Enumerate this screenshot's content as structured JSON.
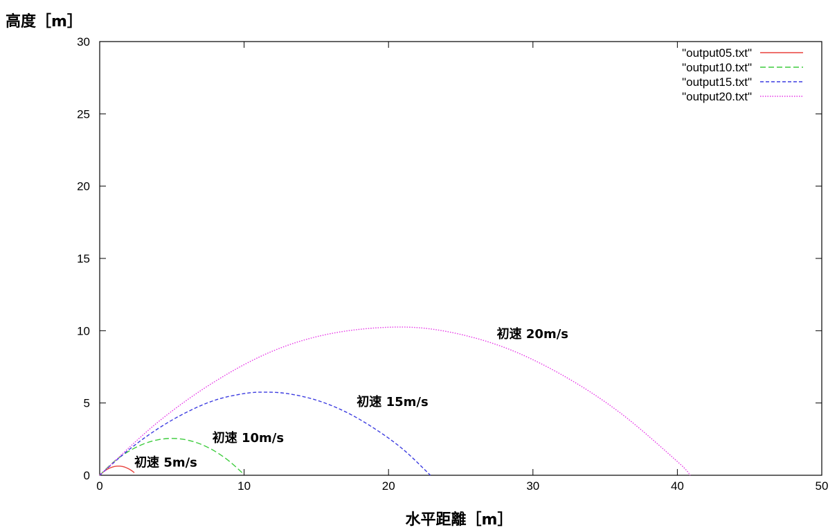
{
  "chart_data": {
    "type": "line",
    "title": "",
    "xlabel": "水平距離［m］",
    "ylabel": "高度［m］",
    "xlim": [
      0,
      50
    ],
    "ylim": [
      0,
      30
    ],
    "xticks": [
      "0",
      "10",
      "20",
      "30",
      "40",
      "50"
    ],
    "yticks": [
      "0",
      "5",
      "10",
      "15",
      "20",
      "25",
      "30"
    ],
    "xtick_values": [
      0,
      10,
      20,
      30,
      40,
      50
    ],
    "ytick_values": [
      0,
      5,
      10,
      15,
      20,
      25,
      30
    ],
    "grid": false,
    "legend_position": "top-right",
    "series": [
      {
        "name": "\"output05.txt\"",
        "color": "#e8413c",
        "dash": "solid",
        "x": [
          0,
          0.25,
          0.5,
          0.75,
          1.0,
          1.2,
          1.4,
          1.6,
          1.8,
          2.0,
          2.2,
          2.4
        ],
        "y": [
          0,
          0.23,
          0.4,
          0.52,
          0.6,
          0.63,
          0.63,
          0.6,
          0.54,
          0.45,
          0.33,
          0.18
        ]
      },
      {
        "name": "\"output10.txt\"",
        "color": "#3dcc3d",
        "dash": "dashed",
        "x": [
          0,
          1,
          2,
          3,
          4,
          5,
          6,
          7,
          8,
          9,
          10
        ],
        "y": [
          0,
          0.95,
          1.65,
          2.15,
          2.45,
          2.55,
          2.45,
          2.15,
          1.65,
          0.95,
          0.05
        ]
      },
      {
        "name": "\"output15.txt\"",
        "color": "#3b3be0",
        "dash": "short-dashed",
        "x": [
          0,
          2,
          4,
          6,
          8,
          10,
          11.4,
          13,
          15,
          17,
          19,
          21,
          22.9
        ],
        "y": [
          0,
          1.75,
          3.2,
          4.35,
          5.2,
          5.65,
          5.75,
          5.65,
          5.2,
          4.4,
          3.25,
          1.8,
          0
        ]
      },
      {
        "name": "\"output20.txt\"",
        "color": "#e633e6",
        "dash": "dotted",
        "x": [
          0,
          4,
          8,
          12,
          16,
          20.4,
          24,
          28,
          32,
          36,
          40,
          40.9
        ],
        "y": [
          0,
          3.65,
          6.5,
          8.6,
          9.8,
          10.25,
          9.95,
          8.85,
          6.95,
          4.35,
          0.95,
          0
        ]
      }
    ],
    "annotations": [
      {
        "text": "初速 5m/s",
        "x": 2.4,
        "y": 0.6
      },
      {
        "text": "初速 10m/s",
        "x": 7.8,
        "y": 2.3
      },
      {
        "text": "初速 15m/s",
        "x": 17.8,
        "y": 4.8
      },
      {
        "text": "初速 20m/s",
        "x": 27.5,
        "y": 9.5
      }
    ]
  }
}
